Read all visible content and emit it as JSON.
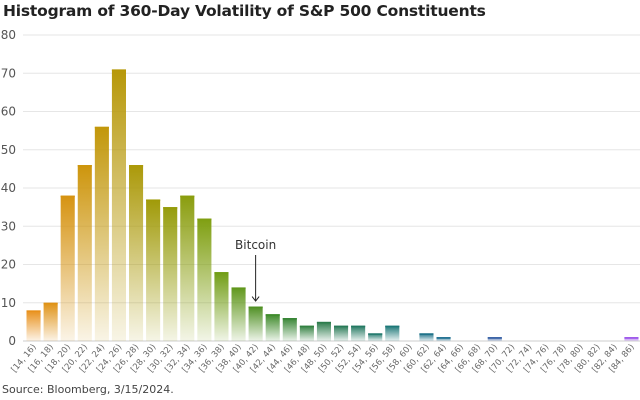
{
  "chart_data": {
    "type": "bar",
    "title": "Histogram of 360-Day Volatility of S&P 500 Constituents",
    "xlabel": "",
    "ylabel": "",
    "ylim": [
      0,
      80
    ],
    "yticks": [
      0,
      10,
      20,
      30,
      40,
      50,
      60,
      70,
      80
    ],
    "grid": true,
    "categories": [
      "[14, 16)",
      "[16, 18)",
      "[18, 20)",
      "[20, 22)",
      "[22, 24)",
      "[24, 26)",
      "[26, 28)",
      "[28, 30)",
      "[30, 32)",
      "[32, 34)",
      "[34, 36)",
      "[36, 38)",
      "[38, 40)",
      "[40, 42)",
      "[42, 44)",
      "[44, 46)",
      "[46, 48)",
      "[48, 50)",
      "[50, 52)",
      "[52, 54)",
      "[54, 56)",
      "[56, 58)",
      "[58, 60)",
      "[60, 62)",
      "[62, 64)",
      "[64, 66)",
      "[66, 68)",
      "[68, 70)",
      "[70, 72)",
      "[72, 74)",
      "[74, 76)",
      "[76, 78)",
      "[78, 80)",
      "[80, 82)",
      "[82, 84)",
      "[84, 86)"
    ],
    "values": [
      8,
      10,
      38,
      46,
      56,
      71,
      46,
      37,
      35,
      38,
      32,
      18,
      14,
      9,
      7,
      6,
      4,
      5,
      4,
      4,
      2,
      4,
      0,
      2,
      1,
      0,
      0,
      1,
      0,
      0,
      0,
      0,
      0,
      0,
      0,
      1
    ],
    "annotation": {
      "text": "Bitcoin",
      "category": "[40, 42)"
    },
    "color_stops": [
      "#e8901a",
      "#c8960a",
      "#a09a08",
      "#7aa012",
      "#3e8a2a",
      "#2a7a52",
      "#1d7878",
      "#1a6a92",
      "#3a56a8",
      "#7a4ac8",
      "#9a52ea"
    ],
    "source": "Source: Bloomberg, 3/15/2024."
  }
}
